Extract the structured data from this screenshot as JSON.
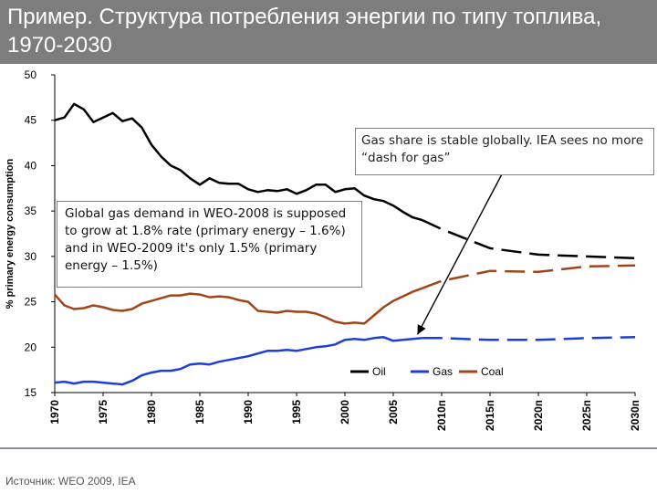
{
  "title": "Пример. Структура потребления энергии по типу топлива, 1970-2030",
  "source": "Источник: WEO 2009, IEA",
  "annotations": {
    "gas_demand": "Global gas demand in WEO-2008 is supposed to grow at 1.8% rate (primary energy – 1.6%) and in WEO-2009 it's only 1.5% (primary energy – 1.5%)",
    "gas_share": "Gas share is stable globally. IEA sees  no more “dash for gas”"
  },
  "chart_data": {
    "type": "line",
    "title": "",
    "xlabel": "",
    "ylabel": "% primary energy consumption",
    "ylim": [
      15,
      50
    ],
    "xlim": [
      1970,
      2030
    ],
    "y_ticks": [
      15,
      20,
      25,
      30,
      35,
      40,
      45,
      50
    ],
    "x_ticks": [
      {
        "x": 1970,
        "label": "1970"
      },
      {
        "x": 1975,
        "label": "1975"
      },
      {
        "x": 1980,
        "label": "1980"
      },
      {
        "x": 1985,
        "label": "1985"
      },
      {
        "x": 1990,
        "label": "1990"
      },
      {
        "x": 1995,
        "label": "1995"
      },
      {
        "x": 2000,
        "label": "2000"
      },
      {
        "x": 2005,
        "label": "2005"
      },
      {
        "x": 2010,
        "label": "2010п"
      },
      {
        "x": 2015,
        "label": "2015п"
      },
      {
        "x": 2020,
        "label": "2020п"
      },
      {
        "x": 2025,
        "label": "2025п"
      },
      {
        "x": 2030,
        "label": "2030п"
      }
    ],
    "grid": false,
    "legend_position": "bottom-right",
    "projection_start": 2008,
    "series": [
      {
        "name": "Oil",
        "color": "#000000",
        "x": [
          1970,
          1971,
          1972,
          1973,
          1974,
          1975,
          1976,
          1977,
          1978,
          1979,
          1980,
          1981,
          1982,
          1983,
          1984,
          1985,
          1986,
          1987,
          1988,
          1989,
          1990,
          1991,
          1992,
          1993,
          1994,
          1995,
          1996,
          1997,
          1998,
          1999,
          2000,
          2001,
          2002,
          2003,
          2004,
          2005,
          2006,
          2007,
          2008,
          2010,
          2015,
          2020,
          2025,
          2030
        ],
        "y": [
          45,
          45.3,
          46.8,
          46.2,
          44.8,
          45.3,
          45.8,
          44.9,
          45.2,
          44.2,
          42.3,
          41,
          40,
          39.5,
          38.6,
          37.9,
          38.6,
          38.1,
          38.0,
          38.0,
          37.4,
          37.1,
          37.3,
          37.2,
          37.4,
          36.9,
          37.3,
          37.9,
          37.9,
          37.1,
          37.4,
          37.5,
          36.7,
          36.3,
          36.1,
          35.6,
          34.9,
          34.3,
          34.0,
          33.0,
          30.9,
          30.2,
          30.0,
          29.8
        ]
      },
      {
        "name": "Gas",
        "color": "#1f3ed6",
        "x": [
          1970,
          1971,
          1972,
          1973,
          1974,
          1975,
          1976,
          1977,
          1978,
          1979,
          1980,
          1981,
          1982,
          1983,
          1984,
          1985,
          1986,
          1987,
          1988,
          1989,
          1990,
          1991,
          1992,
          1993,
          1994,
          1995,
          1996,
          1997,
          1998,
          1999,
          2000,
          2001,
          2002,
          2003,
          2004,
          2005,
          2006,
          2007,
          2008,
          2010,
          2015,
          2020,
          2025,
          2030
        ],
        "y": [
          16.1,
          16.2,
          16.0,
          16.2,
          16.2,
          16.1,
          16.0,
          15.9,
          16.3,
          16.9,
          17.2,
          17.4,
          17.4,
          17.6,
          18.1,
          18.2,
          18.1,
          18.4,
          18.6,
          18.8,
          19.0,
          19.3,
          19.6,
          19.6,
          19.7,
          19.6,
          19.8,
          20.0,
          20.1,
          20.3,
          20.8,
          20.9,
          20.8,
          21.0,
          21.1,
          20.7,
          20.8,
          20.9,
          21.0,
          21.0,
          20.8,
          20.8,
          21.0,
          21.1
        ]
      },
      {
        "name": "Coal",
        "color": "#a0451a",
        "x": [
          1970,
          1971,
          1972,
          1973,
          1974,
          1975,
          1976,
          1977,
          1978,
          1979,
          1980,
          1981,
          1982,
          1983,
          1984,
          1985,
          1986,
          1987,
          1988,
          1989,
          1990,
          1991,
          1992,
          1993,
          1994,
          1995,
          1996,
          1997,
          1998,
          1999,
          2000,
          2001,
          2002,
          2003,
          2004,
          2005,
          2006,
          2007,
          2008,
          2010,
          2015,
          2020,
          2025,
          2030
        ],
        "y": [
          25.8,
          24.6,
          24.2,
          24.3,
          24.6,
          24.4,
          24.1,
          24.0,
          24.2,
          24.8,
          25.1,
          25.4,
          25.7,
          25.7,
          25.9,
          25.8,
          25.5,
          25.6,
          25.5,
          25.2,
          25.0,
          24.0,
          23.9,
          23.8,
          24.0,
          23.9,
          23.9,
          23.7,
          23.3,
          22.8,
          22.6,
          22.7,
          22.6,
          23.5,
          24.4,
          25.1,
          25.6,
          26.1,
          26.5,
          27.3,
          28.4,
          28.3,
          28.9,
          29.0
        ]
      }
    ]
  }
}
